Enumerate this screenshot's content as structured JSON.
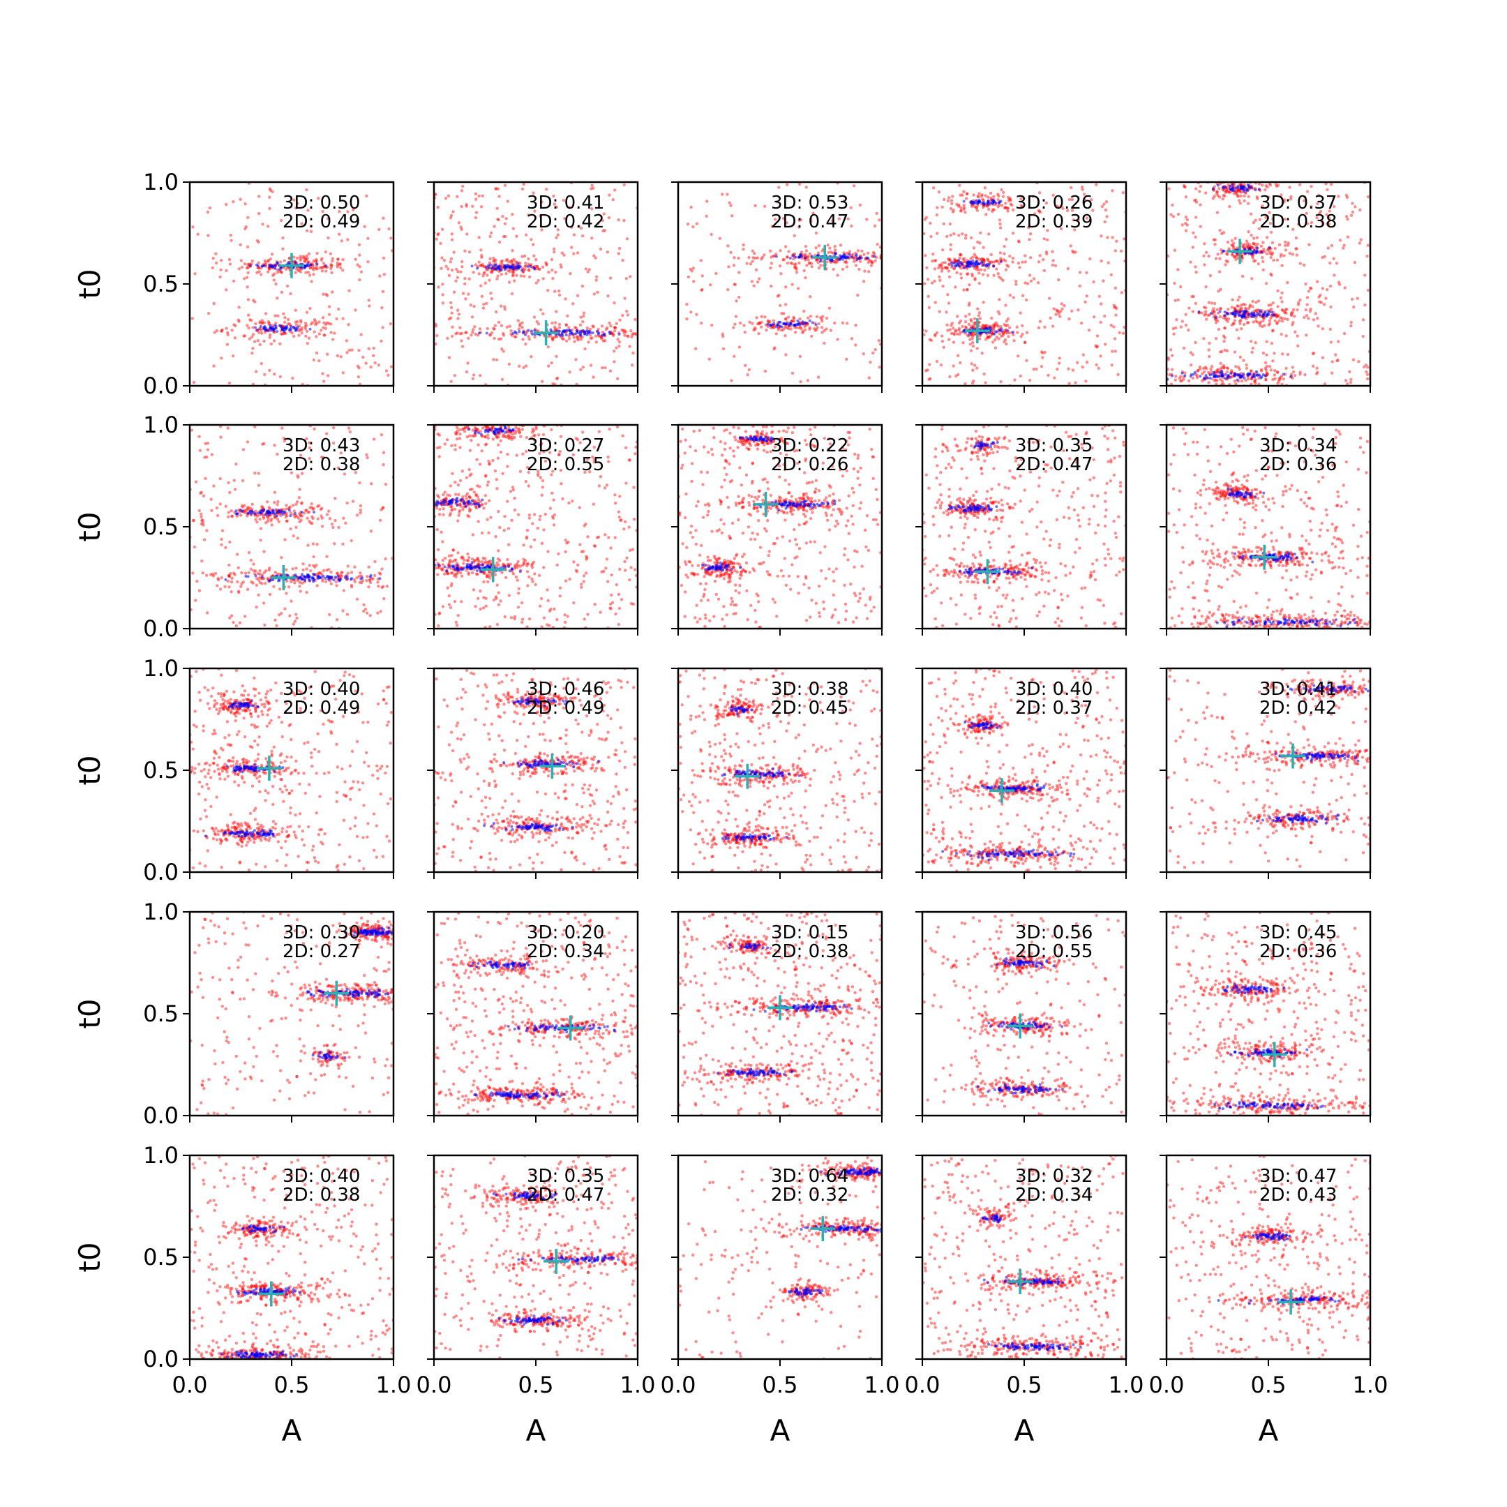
{
  "chart_data": {
    "type": "scatter",
    "layout": {
      "rows": 5,
      "cols": 5
    },
    "xlabel": "A",
    "ylabel": "t0",
    "xlim": [
      0.0,
      1.0
    ],
    "ylim": [
      0.0,
      1.0
    ],
    "xticks": [
      "0.0",
      "0.5",
      "1.0"
    ],
    "yticks": [
      "0.0",
      "0.5",
      "1.0"
    ],
    "colors": {
      "scatter_wide": "#ff0000",
      "scatter_narrow": "#0000ff",
      "marker": "#2ab0b0"
    },
    "panels": [
      {
        "text_3d": "3D: 0.50",
        "text_2d": "2D: 0.49",
        "marker": [
          0.5,
          0.59
        ],
        "bands": [
          [
            0.59,
            0.5,
            0.1,
            0.4,
            0.25
          ],
          [
            0.28,
            0.45,
            0.1,
            0.3,
            0.2
          ]
        ],
        "red_density": 0.5
      },
      {
        "text_3d": "3D: 0.41",
        "text_2d": "2D: 0.42",
        "marker": [
          0.55,
          0.26
        ],
        "bands": [
          [
            0.58,
            0.35,
            0.08,
            0.3,
            0.2
          ],
          [
            0.26,
            0.65,
            0.2,
            0.45,
            0.3
          ]
        ],
        "red_density": 0.8
      },
      {
        "text_3d": "3D: 0.53",
        "text_2d": "2D: 0.47",
        "marker": [
          0.72,
          0.63
        ],
        "bands": [
          [
            0.63,
            0.75,
            0.15,
            0.45,
            0.25
          ],
          [
            0.3,
            0.55,
            0.08,
            0.25,
            0.15
          ]
        ],
        "red_density": 0.4
      },
      {
        "text_3d": "3D: 0.26",
        "text_2d": "2D: 0.39",
        "marker": [
          0.27,
          0.27
        ],
        "bands": [
          [
            0.9,
            0.3,
            0.06,
            0.2,
            0.15
          ],
          [
            0.6,
            0.25,
            0.07,
            0.3,
            0.2
          ],
          [
            0.27,
            0.3,
            0.07,
            0.35,
            0.2
          ]
        ],
        "red_density": 0.9
      },
      {
        "text_3d": "3D: 0.37",
        "text_2d": "2D: 0.38",
        "marker": [
          0.36,
          0.66
        ],
        "bands": [
          [
            0.97,
            0.35,
            0.06,
            0.3,
            0.15
          ],
          [
            0.66,
            0.4,
            0.07,
            0.3,
            0.15
          ],
          [
            0.35,
            0.4,
            0.1,
            0.4,
            0.25
          ],
          [
            0.05,
            0.3,
            0.15,
            0.4,
            0.3
          ]
        ],
        "red_density": 0.9
      },
      {
        "text_3d": "3D: 0.43",
        "text_2d": "2D: 0.38",
        "marker": [
          0.46,
          0.25
        ],
        "bands": [
          [
            0.57,
            0.4,
            0.1,
            0.35,
            0.2
          ],
          [
            0.25,
            0.6,
            0.2,
            0.45,
            0.35
          ]
        ],
        "red_density": 0.6
      },
      {
        "text_3d": "3D: 0.27",
        "text_2d": "2D: 0.55",
        "marker": [
          0.29,
          0.29
        ],
        "bands": [
          [
            0.3,
            0.2,
            0.12,
            0.45,
            0.3
          ],
          [
            0.62,
            0.1,
            0.08,
            0.3,
            0.2
          ],
          [
            0.97,
            0.3,
            0.08,
            0.3,
            0.15
          ]
        ],
        "red_density": 1.0
      },
      {
        "text_3d": "3D: 0.22",
        "text_2d": "2D: 0.26",
        "marker": [
          0.43,
          0.61
        ],
        "bands": [
          [
            0.93,
            0.4,
            0.05,
            0.25,
            0.15
          ],
          [
            0.61,
            0.55,
            0.1,
            0.4,
            0.25
          ],
          [
            0.3,
            0.2,
            0.05,
            0.3,
            0.15
          ]
        ],
        "red_density": 1.0
      },
      {
        "text_3d": "3D: 0.35",
        "text_2d": "2D: 0.47",
        "marker": [
          0.32,
          0.28
        ],
        "bands": [
          [
            0.9,
            0.3,
            0.04,
            0.15,
            0.1
          ],
          [
            0.59,
            0.25,
            0.07,
            0.3,
            0.2
          ],
          [
            0.28,
            0.35,
            0.1,
            0.35,
            0.25
          ]
        ],
        "red_density": 0.9
      },
      {
        "text_3d": "3D: 0.34",
        "text_2d": "2D: 0.36",
        "marker": [
          0.48,
          0.35
        ],
        "bands": [
          [
            0.66,
            0.35,
            0.05,
            0.3,
            0.15
          ],
          [
            0.35,
            0.5,
            0.1,
            0.4,
            0.25
          ],
          [
            0.03,
            0.6,
            0.2,
            0.5,
            0.3
          ]
        ],
        "red_density": 0.8
      },
      {
        "text_3d": "3D: 0.40",
        "text_2d": "2D: 0.49",
        "marker": [
          0.39,
          0.51
        ],
        "bands": [
          [
            0.82,
            0.25,
            0.05,
            0.3,
            0.15
          ],
          [
            0.51,
            0.3,
            0.09,
            0.35,
            0.25
          ],
          [
            0.19,
            0.3,
            0.09,
            0.35,
            0.25
          ]
        ],
        "red_density": 0.8
      },
      {
        "text_3d": "3D: 0.46",
        "text_2d": "2D: 0.49",
        "marker": [
          0.58,
          0.52
        ],
        "bands": [
          [
            0.84,
            0.5,
            0.07,
            0.3,
            0.15
          ],
          [
            0.53,
            0.55,
            0.1,
            0.35,
            0.25
          ],
          [
            0.22,
            0.5,
            0.1,
            0.35,
            0.25
          ]
        ],
        "red_density": 0.9
      },
      {
        "text_3d": "3D: 0.38",
        "text_2d": "2D: 0.45",
        "marker": [
          0.34,
          0.47
        ],
        "bands": [
          [
            0.8,
            0.3,
            0.04,
            0.25,
            0.1
          ],
          [
            0.48,
            0.4,
            0.1,
            0.35,
            0.25
          ],
          [
            0.17,
            0.35,
            0.08,
            0.35,
            0.2
          ]
        ],
        "red_density": 0.9
      },
      {
        "text_3d": "3D: 0.40",
        "text_2d": "2D: 0.37",
        "marker": [
          0.39,
          0.4
        ],
        "bands": [
          [
            0.72,
            0.3,
            0.04,
            0.25,
            0.15
          ],
          [
            0.41,
            0.45,
            0.1,
            0.4,
            0.25
          ],
          [
            0.09,
            0.45,
            0.14,
            0.45,
            0.3
          ]
        ],
        "red_density": 0.9
      },
      {
        "text_3d": "3D: 0.41",
        "text_2d": "2D: 0.42",
        "marker": [
          0.62,
          0.57
        ],
        "bands": [
          [
            0.57,
            0.75,
            0.15,
            0.45,
            0.3
          ],
          [
            0.26,
            0.65,
            0.1,
            0.35,
            0.25
          ],
          [
            0.9,
            0.8,
            0.1,
            0.3,
            0.2
          ]
        ],
        "red_density": 0.5
      },
      {
        "text_3d": "3D: 0.30",
        "text_2d": "2D: 0.27",
        "marker": [
          0.72,
          0.6
        ],
        "bands": [
          [
            0.6,
            0.8,
            0.12,
            0.5,
            0.3
          ],
          [
            0.29,
            0.68,
            0.04,
            0.15,
            0.1
          ],
          [
            0.9,
            0.9,
            0.06,
            0.4,
            0.3
          ]
        ],
        "red_density": 0.5
      },
      {
        "text_3d": "3D: 0.20",
        "text_2d": "2D: 0.34",
        "marker": [
          0.67,
          0.43
        ],
        "bands": [
          [
            0.74,
            0.35,
            0.08,
            0.3,
            0.2
          ],
          [
            0.43,
            0.65,
            0.14,
            0.4,
            0.25
          ],
          [
            0.1,
            0.4,
            0.12,
            0.45,
            0.3
          ]
        ],
        "red_density": 0.9
      },
      {
        "text_3d": "3D: 0.15",
        "text_2d": "2D: 0.38",
        "marker": [
          0.5,
          0.53
        ],
        "bands": [
          [
            0.83,
            0.35,
            0.05,
            0.25,
            0.1
          ],
          [
            0.53,
            0.65,
            0.14,
            0.45,
            0.3
          ],
          [
            0.21,
            0.38,
            0.1,
            0.35,
            0.25
          ]
        ],
        "red_density": 1.0
      },
      {
        "text_3d": "3D: 0.56",
        "text_2d": "2D: 0.55",
        "marker": [
          0.48,
          0.44
        ],
        "bands": [
          [
            0.75,
            0.5,
            0.08,
            0.35,
            0.2
          ],
          [
            0.44,
            0.5,
            0.09,
            0.35,
            0.25
          ],
          [
            0.13,
            0.5,
            0.1,
            0.35,
            0.25
          ]
        ],
        "red_density": 0.5
      },
      {
        "text_3d": "3D: 0.45",
        "text_2d": "2D: 0.36",
        "marker": [
          0.53,
          0.3
        ],
        "bands": [
          [
            0.62,
            0.4,
            0.08,
            0.35,
            0.2
          ],
          [
            0.31,
            0.5,
            0.09,
            0.35,
            0.25
          ],
          [
            0.05,
            0.5,
            0.18,
            0.45,
            0.3
          ]
        ],
        "red_density": 0.9
      },
      {
        "text_3d": "3D: 0.40",
        "text_2d": "2D: 0.38",
        "marker": [
          0.4,
          0.32
        ],
        "bands": [
          [
            0.64,
            0.35,
            0.06,
            0.3,
            0.15
          ],
          [
            0.33,
            0.4,
            0.1,
            0.4,
            0.25
          ],
          [
            0.02,
            0.35,
            0.1,
            0.45,
            0.3
          ]
        ],
        "red_density": 0.8
      },
      {
        "text_3d": "3D: 0.35",
        "text_2d": "2D: 0.47",
        "marker": [
          0.6,
          0.48
        ],
        "bands": [
          [
            0.8,
            0.45,
            0.08,
            0.3,
            0.2
          ],
          [
            0.49,
            0.7,
            0.14,
            0.4,
            0.25
          ],
          [
            0.19,
            0.5,
            0.1,
            0.35,
            0.25
          ]
        ],
        "red_density": 0.8
      },
      {
        "text_3d": "3D: 0.64",
        "text_2d": "2D: 0.32",
        "marker": [
          0.71,
          0.64
        ],
        "bands": [
          [
            0.64,
            0.8,
            0.12,
            0.45,
            0.3
          ],
          [
            0.33,
            0.62,
            0.05,
            0.25,
            0.15
          ],
          [
            0.92,
            0.9,
            0.08,
            0.4,
            0.3
          ]
        ],
        "red_density": 0.4
      },
      {
        "text_3d": "3D: 0.32",
        "text_2d": "2D: 0.34",
        "marker": [
          0.48,
          0.38
        ],
        "bands": [
          [
            0.69,
            0.35,
            0.03,
            0.15,
            0.1
          ],
          [
            0.38,
            0.55,
            0.1,
            0.4,
            0.25
          ],
          [
            0.06,
            0.55,
            0.15,
            0.45,
            0.3
          ]
        ],
        "red_density": 0.9
      },
      {
        "text_3d": "3D: 0.47",
        "text_2d": "2D: 0.43",
        "marker": [
          0.61,
          0.28
        ],
        "bands": [
          [
            0.6,
            0.5,
            0.07,
            0.3,
            0.2
          ],
          [
            0.29,
            0.65,
            0.12,
            0.4,
            0.25
          ]
        ],
        "red_density": 0.8
      }
    ]
  }
}
